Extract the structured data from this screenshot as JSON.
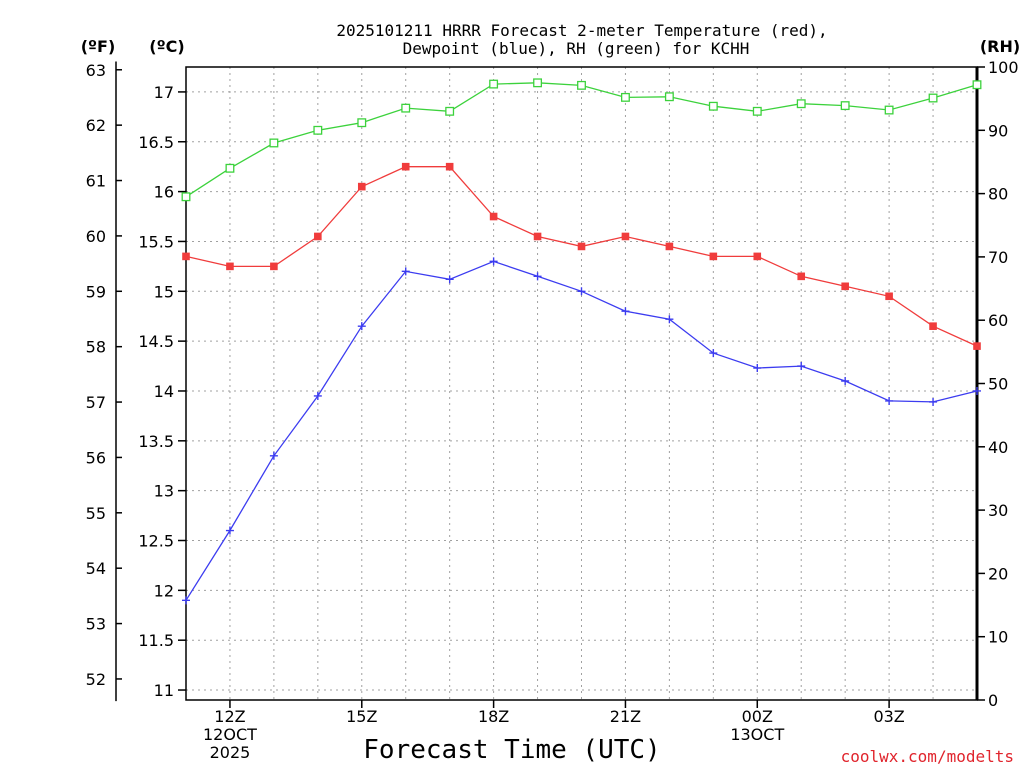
{
  "title_line1": "2025101211 HRRR Forecast 2-meter Temperature (red),",
  "title_line2": "Dewpoint (blue), RH (green) for KCHH",
  "credit": "coolwx.com/modelts",
  "chart_data": {
    "type": "line",
    "title": "2025101211 HRRR Forecast 2-meter Temperature (red), Dewpoint (blue), RH (green) for KCHH",
    "xlabel": "Forecast Time (UTC)",
    "x_hours": [
      11,
      12,
      13,
      14,
      15,
      16,
      17,
      18,
      19,
      20,
      21,
      22,
      23,
      24,
      25,
      26,
      27,
      28,
      29
    ],
    "xlim": [
      11,
      29
    ],
    "x_ticks": [
      {
        "hour": 12,
        "lines": [
          "12Z",
          "12OCT",
          "2025"
        ]
      },
      {
        "hour": 15,
        "lines": [
          "15Z"
        ]
      },
      {
        "hour": 18,
        "lines": [
          "18Z"
        ]
      },
      {
        "hour": 21,
        "lines": [
          "21Z"
        ]
      },
      {
        "hour": 24,
        "lines": [
          "00Z",
          "13OCT"
        ]
      },
      {
        "hour": 27,
        "lines": [
          "03Z"
        ]
      }
    ],
    "left_celsius_axis": {
      "unit_label": "(ºC)",
      "ylim": [
        10.9,
        17.25
      ],
      "ticks": [
        "11",
        "11.5",
        "12",
        "12.5",
        "13",
        "13.5",
        "14",
        "14.5",
        "15",
        "15.5",
        "16",
        "16.5",
        "17"
      ]
    },
    "left_fahrenheit_axis": {
      "unit_label": "(ºF)",
      "ticks": [
        "52",
        "53",
        "54",
        "55",
        "56",
        "57",
        "58",
        "59",
        "60",
        "61",
        "62",
        "63"
      ]
    },
    "right_rh_axis": {
      "unit_label": "(RH)",
      "ylim": [
        0,
        100
      ],
      "ticks": [
        "0",
        "10",
        "20",
        "30",
        "40",
        "50",
        "60",
        "70",
        "80",
        "90",
        "100"
      ]
    },
    "series": [
      {
        "name": "Temperature",
        "axis": "celsius",
        "color": "#f03c3c",
        "marker": "filled-square",
        "values": [
          15.35,
          15.25,
          15.25,
          15.55,
          16.05,
          16.25,
          16.25,
          15.75,
          15.55,
          15.45,
          15.55,
          15.45,
          15.35,
          15.35,
          15.15,
          15.05,
          14.95,
          14.65,
          14.45
        ]
      },
      {
        "name": "Dewpoint",
        "axis": "celsius",
        "color": "#3c3cf0",
        "marker": "plus",
        "values": [
          11.9,
          12.6,
          13.35,
          13.95,
          14.65,
          15.2,
          15.12,
          15.3,
          15.15,
          15.0,
          14.8,
          14.72,
          14.38,
          14.23,
          14.25,
          14.1,
          13.9,
          13.89,
          14.0
        ]
      },
      {
        "name": "RH",
        "axis": "rh",
        "color": "#3cd23c",
        "marker": "open-square",
        "values": [
          79.5,
          84,
          88,
          90,
          91.2,
          93.5,
          93,
          97.3,
          97.5,
          97.1,
          95.2,
          95.3,
          93.8,
          93,
          94.2,
          93.9,
          93.2,
          95.1,
          97.2
        ]
      }
    ]
  }
}
